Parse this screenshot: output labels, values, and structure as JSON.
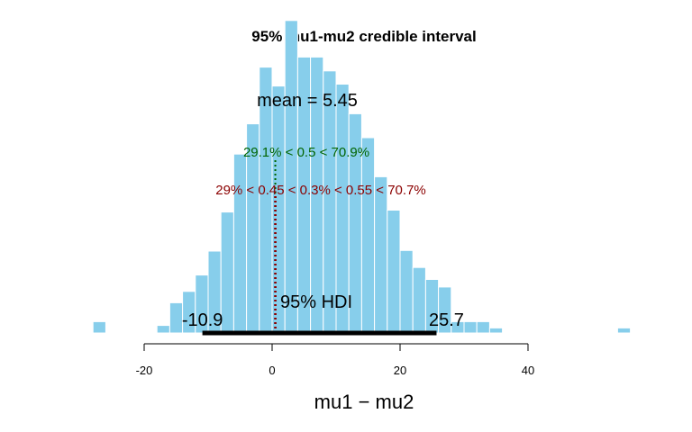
{
  "chart_data": {
    "type": "bar",
    "title": "95% mu1-mu2 credible interval",
    "xlabel": "mu1 − mu2",
    "ylabel": "",
    "xlim": [
      -30,
      57
    ],
    "ylim": [
      0,
      0.04
    ],
    "x_ticks": [
      -20,
      0,
      20,
      40
    ],
    "bin_width": 2,
    "bins_start": [
      -28,
      -26,
      -24,
      -22,
      -20,
      -18,
      -16,
      -14,
      -12,
      -10,
      -8,
      -6,
      -4,
      -2,
      0,
      2,
      4,
      6,
      8,
      10,
      12,
      14,
      16,
      18,
      20,
      22,
      24,
      26,
      28,
      30,
      32,
      34,
      54
    ],
    "density": [
      0.0018,
      0,
      0,
      0,
      0,
      0.0012,
      0.0048,
      0.0066,
      0.0092,
      0.013,
      0.0192,
      0.0284,
      0.0332,
      0.0422,
      0.0392,
      0.0496,
      0.0438,
      0.0438,
      0.0416,
      0.0395,
      0.0348,
      0.031,
      0.0248,
      0.0195,
      0.0131,
      0.0104,
      0.0085,
      0.0073,
      0.0018,
      0.0018,
      0.0018,
      0.0008,
      0.0008
    ],
    "fill_color": "#87ceeb",
    "mean_label": "mean = 5.45",
    "comp_value": 0.5,
    "comp_label": "29.1% < 0.5 < 70.9%",
    "comp_color": "#006400",
    "rope": [
      0.45,
      0.55
    ],
    "rope_label": "29% < 0.45 < 0.3% < 0.55 < 70.7%",
    "rope_color": "#8b0000",
    "hdi": [
      -10.9,
      25.7
    ],
    "hdi_low_label": "-10.9",
    "hdi_high_label": "25.7",
    "hdi_label": "95% HDI"
  }
}
